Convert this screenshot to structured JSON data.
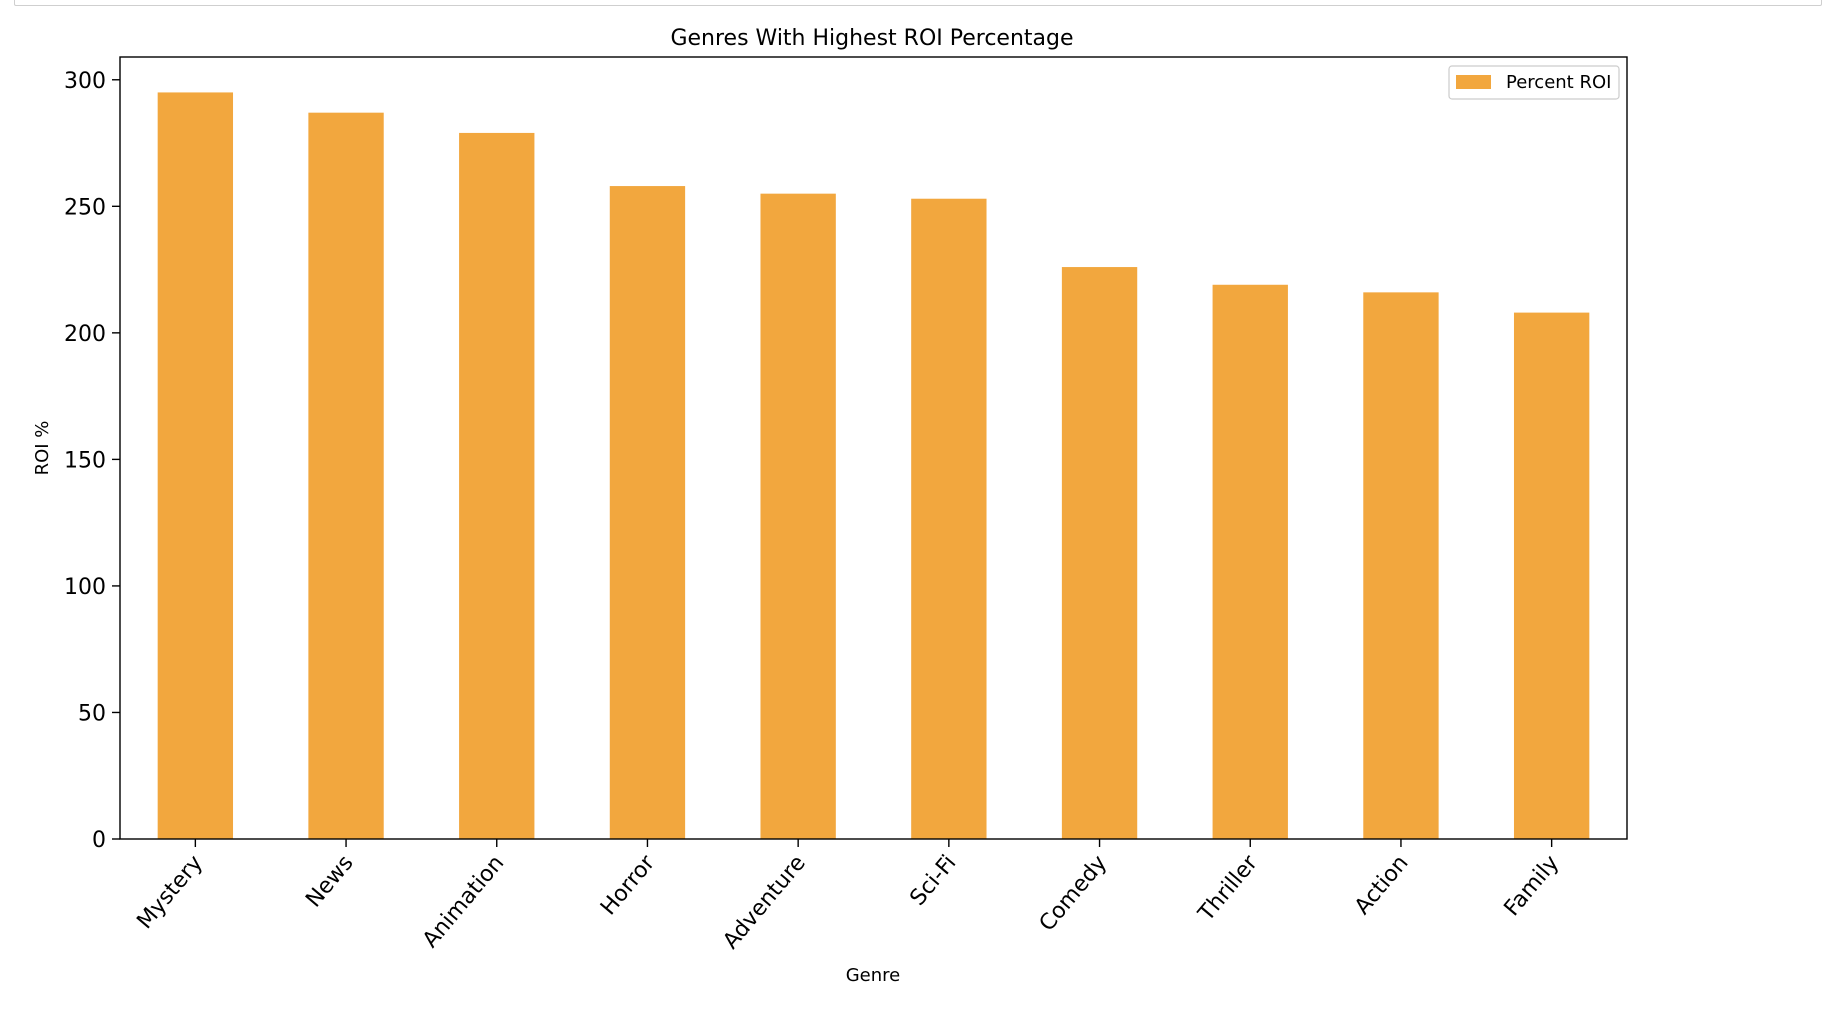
{
  "chart_data": {
    "type": "bar",
    "title": "Genres With Highest ROI Percentage",
    "xlabel": "Genre",
    "ylabel": "ROI %",
    "categories": [
      "Mystery",
      "News",
      "Animation",
      "Horror",
      "Adventure",
      "Sci-Fi",
      "Comedy",
      "Thriller",
      "Action",
      "Family"
    ],
    "series": [
      {
        "name": "Percent ROI",
        "values": [
          295,
          287,
          279,
          258,
          255,
          253,
          226,
          219,
          216,
          208
        ],
        "color": "#f2a73e"
      }
    ],
    "ylim": [
      0,
      309
    ],
    "yticks": [
      0,
      50,
      100,
      150,
      200,
      250,
      300
    ],
    "legend_position": "top-right",
    "grid": false
  }
}
